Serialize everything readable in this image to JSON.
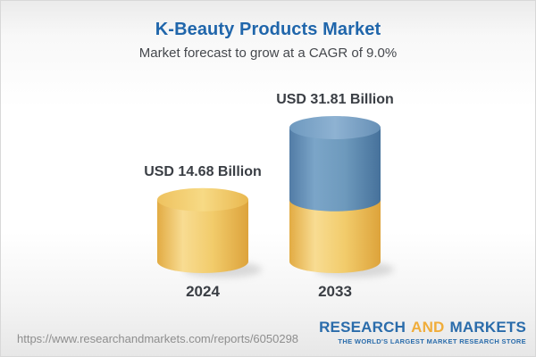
{
  "chart_data": {
    "type": "bar",
    "subtype": "stacked-3d-cylinder",
    "title": "K-Beauty Products Market",
    "subtitle": "Market forecast to grow at a CAGR of 9.0%",
    "categories": [
      "2024",
      "2033"
    ],
    "values": [
      14.68,
      31.81
    ],
    "value_labels": [
      "USD 14.68 Billion",
      "USD 31.81 Billion"
    ],
    "unit": "USD Billion",
    "cagr": "9.0%",
    "series": [
      {
        "name": "base (2024 size)",
        "color_hex": "#f2cc6c"
      },
      {
        "name": "growth to 2033",
        "color_hex": "#6b96bb"
      }
    ],
    "legend_position": "none",
    "grid": false,
    "axes_visible": false
  },
  "footer": {
    "url": "https://www.researchandmarkets.com/reports/6050298",
    "logo": {
      "word1": "RESEARCH",
      "word2": "AND",
      "word3": "MARKETS",
      "tagline": "THE WORLD'S LARGEST MARKET RESEARCH STORE"
    }
  },
  "colors": {
    "title_blue": "#2066ab",
    "gold": "#f2cc6c",
    "blue": "#6b96bb",
    "label_dark": "#3a3e44",
    "url_gray": "#8e8e8e",
    "logo_blue": "#2a6cab",
    "logo_gold": "#f0ad3b"
  }
}
